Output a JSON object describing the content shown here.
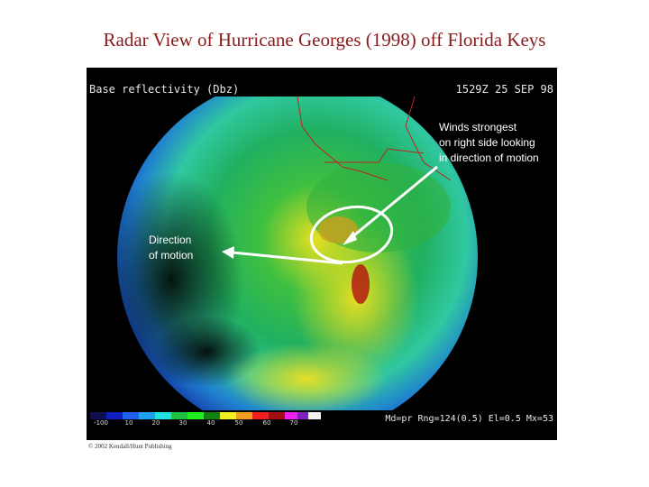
{
  "title": "Radar View of Hurricane Georges (1998) off Florida Keys",
  "radar": {
    "header_left": "Base reflectivity (Dbz)",
    "header_right": "1529Z 25 SEP 98",
    "annotations": {
      "winds": [
        "Winds strongest",
        "on right side looking",
        "in direction of motion"
      ],
      "direction": [
        "Direction",
        "of motion"
      ]
    },
    "scale_labels": [
      "-100",
      "10",
      "20",
      "30",
      "40",
      "50",
      "60",
      "70"
    ],
    "footer_info": "Md=pr Rng=124(0.5) El=0.5 Mx=53"
  },
  "credit": "© 2002 Kendall/Hunt Publishing"
}
